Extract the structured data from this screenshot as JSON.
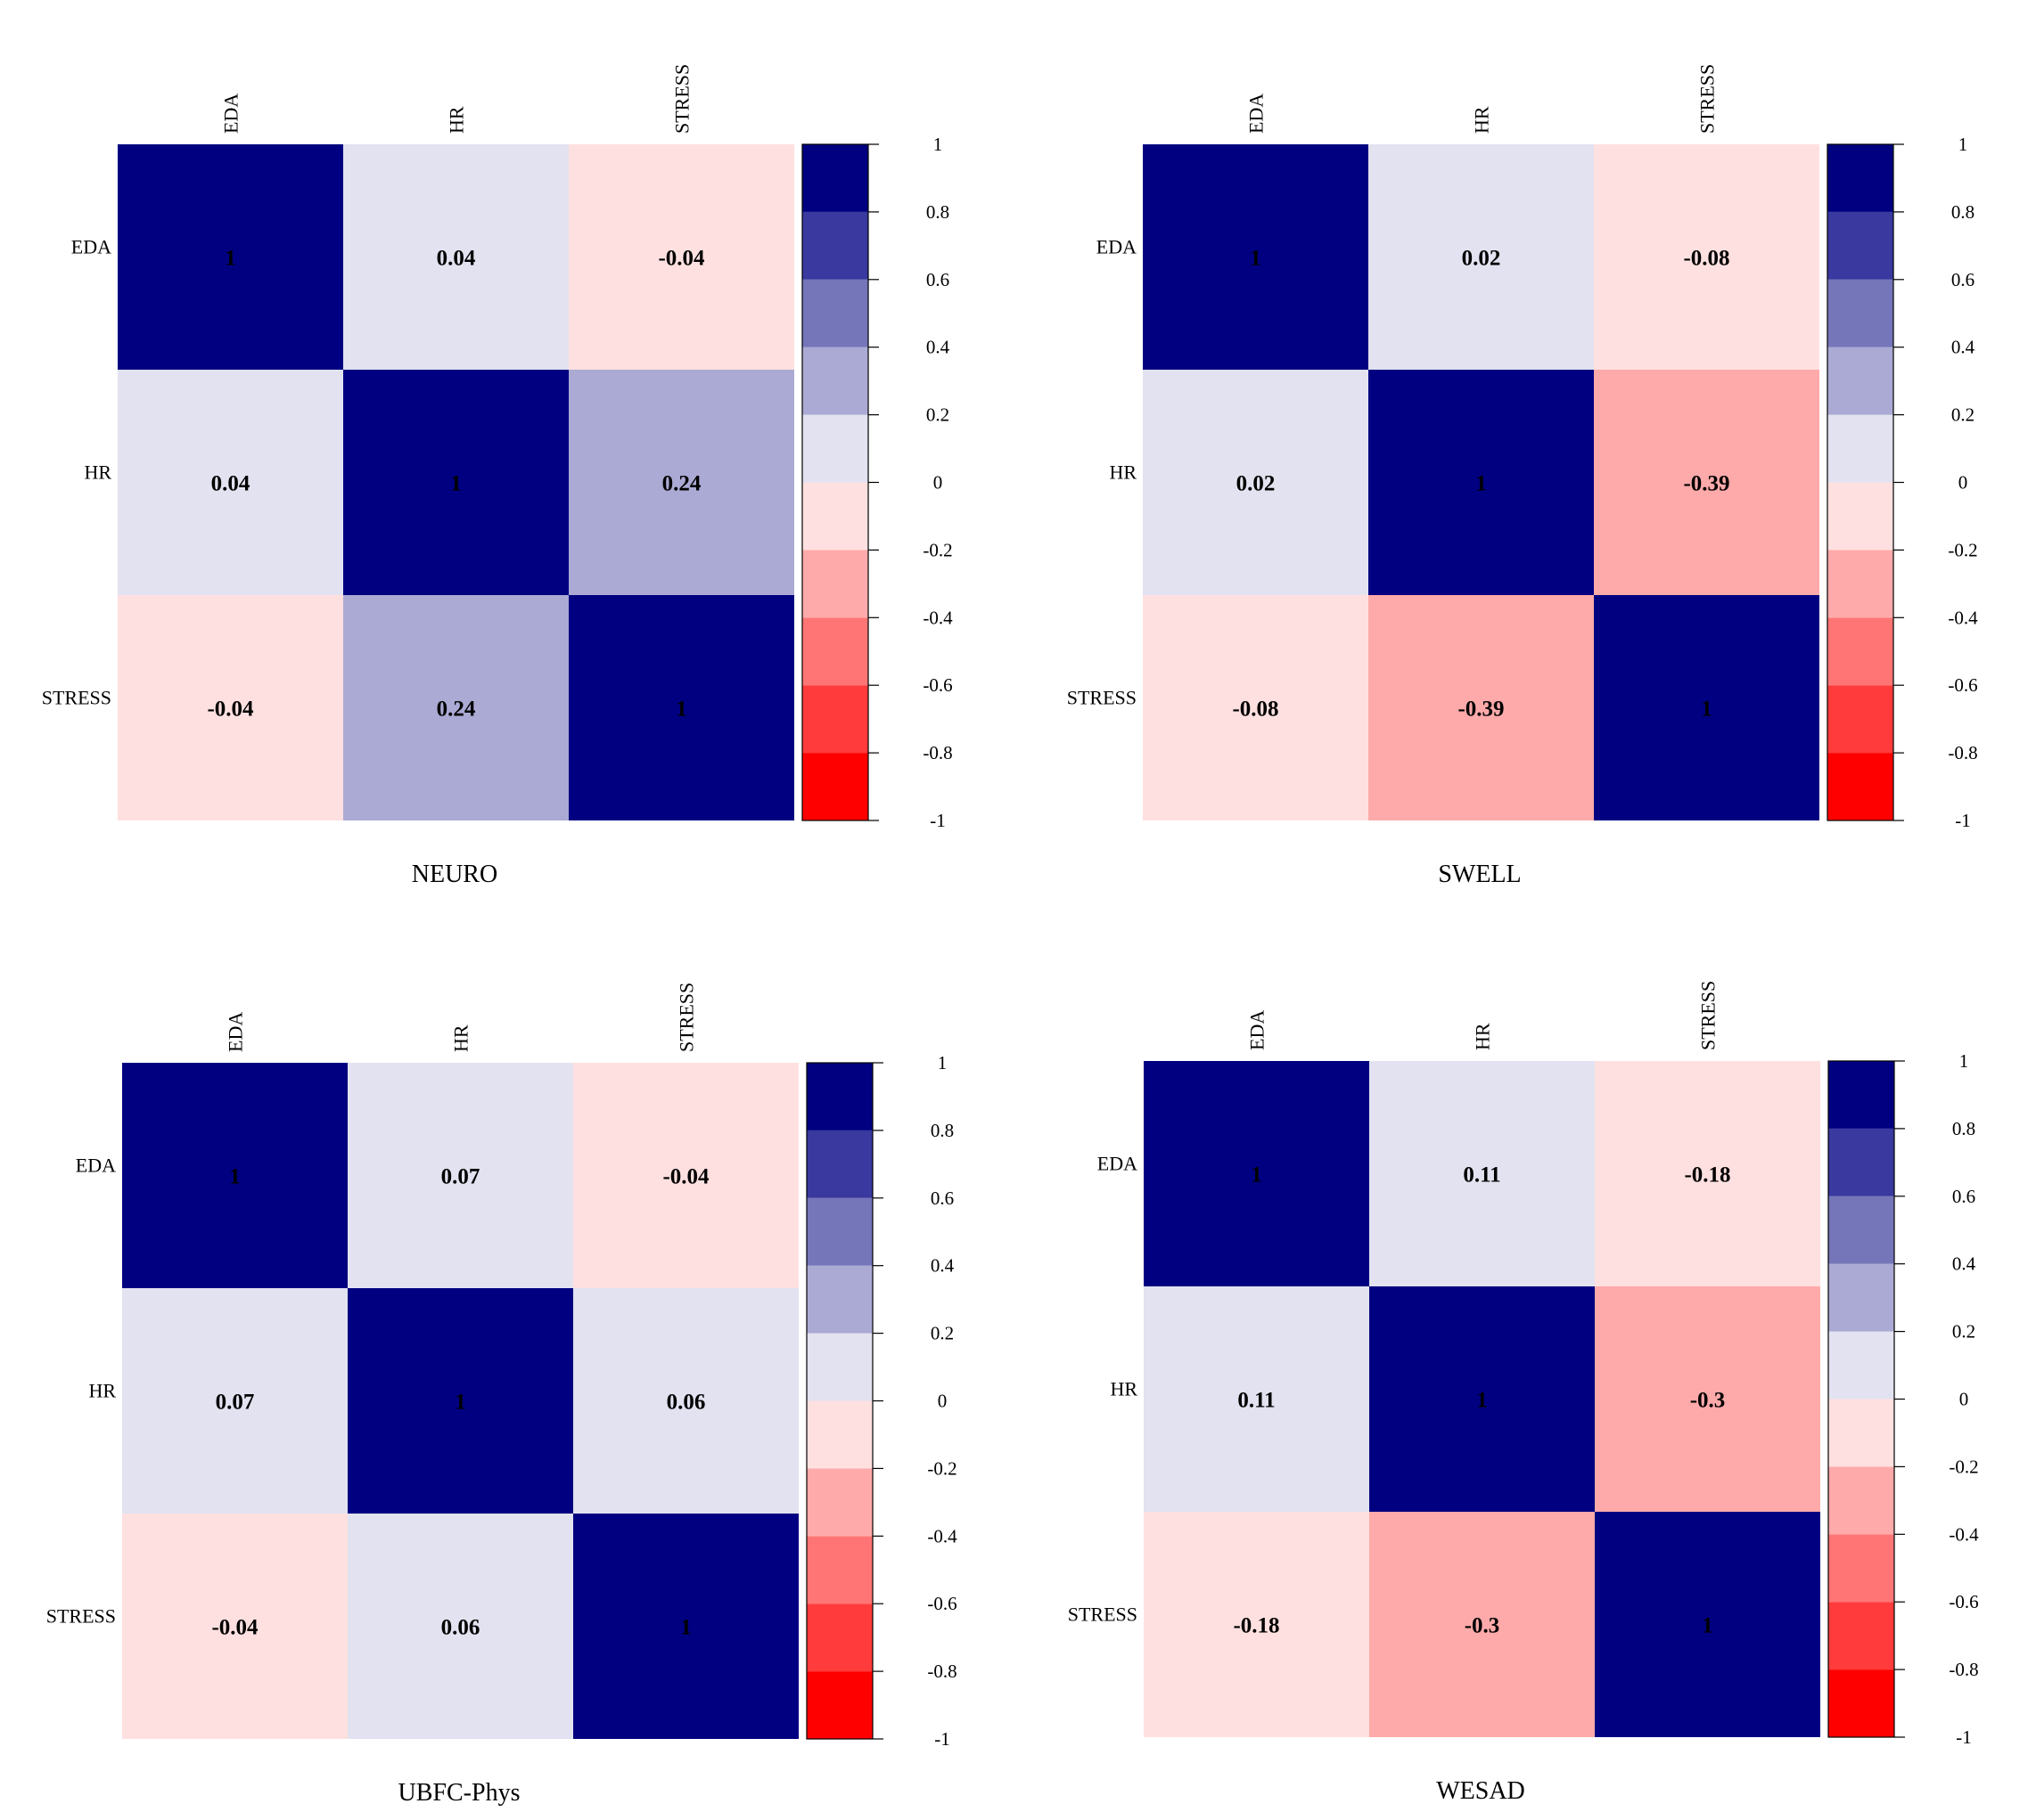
{
  "colors": {
    "scale": [
      "#ff0000",
      "#ff3b3b",
      "#ff7575",
      "#ffaaaa",
      "#ffe0e0",
      "#e2e2f0",
      "#aaaad4",
      "#7575b9",
      "#39399f",
      "#000080"
    ],
    "value_text": "#000000",
    "axis": "#000000"
  },
  "chart_data": [
    {
      "type": "heatmap",
      "title": "NEURO",
      "variables": [
        "EDA",
        "HR",
        "STRESS"
      ],
      "matrix": [
        [
          1,
          0.04,
          -0.04
        ],
        [
          0.04,
          1,
          0.24
        ],
        [
          -0.04,
          0.24,
          1
        ]
      ],
      "labels": [
        [
          "1",
          "0.04",
          "-0.04"
        ],
        [
          "0.04",
          "1",
          "0.24"
        ],
        [
          "-0.04",
          "0.24",
          "1"
        ]
      ],
      "colorbar": {
        "range": [
          -1,
          1
        ],
        "ticks": [
          "1",
          "0.8",
          "0.6",
          "0.4",
          "0.2",
          "0",
          "-0.2",
          "-0.4",
          "-0.6",
          "-0.8",
          "-1"
        ]
      }
    },
    {
      "type": "heatmap",
      "title": "SWELL",
      "variables": [
        "EDA",
        "HR",
        "STRESS"
      ],
      "matrix": [
        [
          1,
          0.02,
          -0.08
        ],
        [
          0.02,
          1,
          -0.39
        ],
        [
          -0.08,
          -0.39,
          1
        ]
      ],
      "labels": [
        [
          "1",
          "0.02",
          "-0.08"
        ],
        [
          "0.02",
          "1",
          "-0.39"
        ],
        [
          "-0.08",
          "-0.39",
          "1"
        ]
      ],
      "colorbar": {
        "range": [
          -1,
          1
        ],
        "ticks": [
          "1",
          "0.8",
          "0.6",
          "0.4",
          "0.2",
          "0",
          "-0.2",
          "-0.4",
          "-0.6",
          "-0.8",
          "-1"
        ]
      }
    },
    {
      "type": "heatmap",
      "title": "UBFC-Phys",
      "variables": [
        "EDA",
        "HR",
        "STRESS"
      ],
      "matrix": [
        [
          1,
          0.07,
          -0.04
        ],
        [
          0.07,
          1,
          0.06
        ],
        [
          -0.04,
          0.06,
          1
        ]
      ],
      "labels": [
        [
          "1",
          "0.07",
          "-0.04"
        ],
        [
          "0.07",
          "1",
          "0.06"
        ],
        [
          "-0.04",
          "0.06",
          "1"
        ]
      ],
      "colorbar": {
        "range": [
          -1,
          1
        ],
        "ticks": [
          "1",
          "0.8",
          "0.6",
          "0.4",
          "0.2",
          "0",
          "-0.2",
          "-0.4",
          "-0.6",
          "-0.8",
          "-1"
        ]
      }
    },
    {
      "type": "heatmap",
      "title": "WESAD",
      "variables": [
        "EDA",
        "HR",
        "STRESS"
      ],
      "matrix": [
        [
          1,
          0.11,
          -0.18
        ],
        [
          0.11,
          1,
          -0.3
        ],
        [
          -0.18,
          -0.3,
          1
        ]
      ],
      "labels": [
        [
          "1",
          "0.11",
          "-0.18"
        ],
        [
          "0.11",
          "1",
          "-0.3"
        ],
        [
          "-0.18",
          "-0.3",
          "1"
        ]
      ],
      "colorbar": {
        "range": [
          -1,
          1
        ],
        "ticks": [
          "1",
          "0.8",
          "0.6",
          "0.4",
          "0.2",
          "0",
          "-0.2",
          "-0.4",
          "-0.6",
          "-0.8",
          "-1"
        ]
      }
    }
  ]
}
